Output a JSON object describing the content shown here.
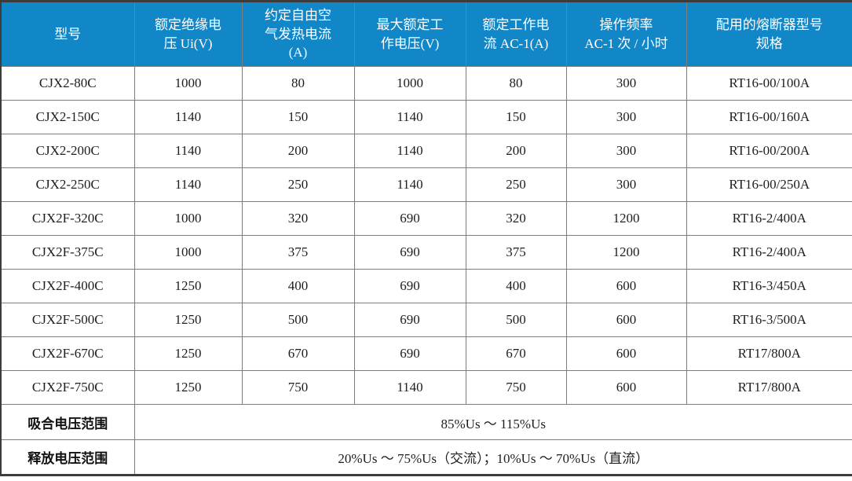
{
  "table": {
    "headers": [
      "型号",
      "额定绝缘电\n压 Ui(V)",
      "约定自由空\n气发热电流\n(A)",
      "最大额定工\n作电压(V)",
      "额定工作电\n流 AC-1(A)",
      "操作频率\nAC-1 次 / 小时",
      "配用的熔断器型号\n规格"
    ],
    "rows": [
      [
        "CJX2-80C",
        "1000",
        "80",
        "1000",
        "80",
        "300",
        "RT16-00/100A"
      ],
      [
        "CJX2-150C",
        "1140",
        "150",
        "1140",
        "150",
        "300",
        "RT16-00/160A"
      ],
      [
        "CJX2-200C",
        "1140",
        "200",
        "1140",
        "200",
        "300",
        "RT16-00/200A"
      ],
      [
        "CJX2-250C",
        "1140",
        "250",
        "1140",
        "250",
        "300",
        "RT16-00/250A"
      ],
      [
        "CJX2F-320C",
        "1000",
        "320",
        "690",
        "320",
        "1200",
        "RT16-2/400A"
      ],
      [
        "CJX2F-375C",
        "1000",
        "375",
        "690",
        "375",
        "1200",
        "RT16-2/400A"
      ],
      [
        "CJX2F-400C",
        "1250",
        "400",
        "690",
        "400",
        "600",
        "RT16-3/450A"
      ],
      [
        "CJX2F-500C",
        "1250",
        "500",
        "690",
        "500",
        "600",
        "RT16-3/500A"
      ],
      [
        "CJX2F-670C",
        "1250",
        "670",
        "690",
        "670",
        "600",
        "RT17/800A"
      ],
      [
        "CJX2F-750C",
        "1250",
        "750",
        "1140",
        "750",
        "600",
        "RT17/800A"
      ]
    ],
    "footer_rows": [
      {
        "label": "吸合电压范围",
        "value": "85%Us ～ 115%Us"
      },
      {
        "label": "释放电压范围",
        "value": "20%Us ～ 75%Us（交流）；10%Us ～ 70%Us（直流）"
      }
    ]
  },
  "colors": {
    "header_bg": "#1287c8",
    "header_text": "#ffffff",
    "grid_line": "#7d7d7d",
    "outer_border": "#3c3c3c",
    "cell_text": "#1e1e1e"
  }
}
